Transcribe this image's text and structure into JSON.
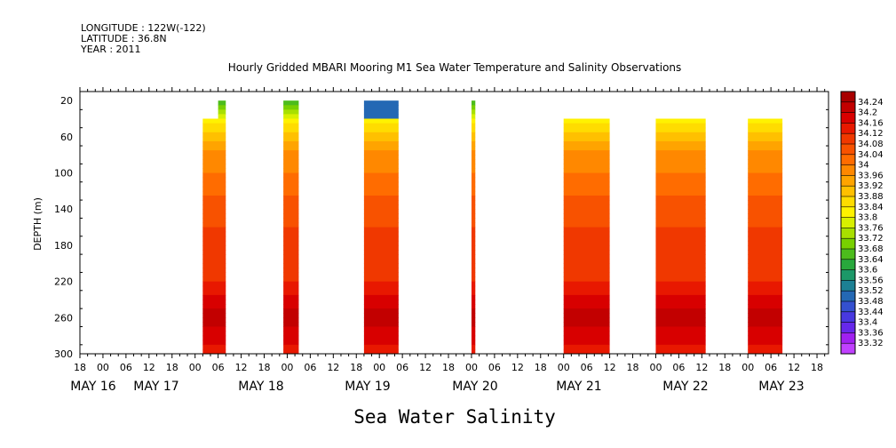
{
  "header": {
    "longitude": "LONGITUDE : 122W(-122)",
    "latitude": "LATITUDE : 36.8N",
    "year": "YEAR : 2011"
  },
  "chart_data": {
    "type": "heatmap",
    "title": "Hourly Gridded MBARI Mooring M1 Sea Water Temperature and Salinity Observations",
    "xlabel": "Sea Water Salinity",
    "ylabel": "DEPTH (m)",
    "ylim": [
      300,
      10
    ],
    "y_ticks": [
      20,
      60,
      100,
      140,
      180,
      220,
      260,
      300
    ],
    "x_hour_ticks": [
      "18",
      "00",
      "06",
      "12",
      "18",
      "00",
      "06",
      "12",
      "18",
      "00",
      "06",
      "12",
      "18",
      "00",
      "06",
      "12",
      "18",
      "00",
      "06",
      "12",
      "18",
      "00",
      "06",
      "12",
      "18",
      "00",
      "06",
      "12",
      "18",
      "00",
      "06",
      "12",
      "18"
    ],
    "x_day_labels": [
      "MAY 16",
      "MAY 17",
      "MAY 18",
      "MAY 19",
      "MAY 20",
      "MAY 21",
      "MAY 22",
      "MAY 23"
    ],
    "colorbar_levels": [
      "34.24",
      "34.2",
      "34.16",
      "34.12",
      "34.08",
      "34.04",
      "34",
      "33.96",
      "33.92",
      "33.88",
      "33.84",
      "33.8",
      "33.76",
      "33.72",
      "33.68",
      "33.64",
      "33.6",
      "33.56",
      "33.52",
      "33.48",
      "33.44",
      "33.4",
      "33.36",
      "33.32"
    ],
    "colorbar_colors": [
      "#a80000",
      "#c20000",
      "#d80000",
      "#e81800",
      "#f03800",
      "#f85200",
      "#ff6c00",
      "#ff8800",
      "#ffa400",
      "#ffc000",
      "#ffdc00",
      "#fff200",
      "#d8f000",
      "#a8e000",
      "#78d000",
      "#4cbc1c",
      "#28a83c",
      "#1c9868",
      "#1c8094",
      "#2468b4",
      "#3450d0",
      "#4838e0",
      "#6628ea",
      "#a020f0",
      "#c040ff"
    ],
    "observation_segments": [
      {
        "start": "2011-05-17 02:00",
        "end": "2011-05-17 08:00",
        "top_depth": 40,
        "top_step_depth": 20,
        "top_step_start": "2011-05-17 06:00"
      },
      {
        "start": "2011-05-17 23:00",
        "end": "2011-05-18 03:00",
        "top_depth": 20
      },
      {
        "start": "2011-05-18 20:00",
        "end": "2011-05-19 05:00",
        "top_depth": 20
      },
      {
        "start": "2011-05-20 00:00",
        "end": "2011-05-20 01:00",
        "top_depth": 20
      },
      {
        "start": "2011-05-21 00:00",
        "end": "2011-05-21 12:00",
        "top_depth": 40
      },
      {
        "start": "2011-05-22 00:00",
        "end": "2011-05-22 13:00",
        "top_depth": 40
      },
      {
        "start": "2011-05-23 00:00",
        "end": "2011-05-23 09:00",
        "top_depth": 40
      }
    ],
    "depth_profile": [
      {
        "depth": 20,
        "salinity": 33.62
      },
      {
        "depth": 40,
        "salinity": 33.82
      },
      {
        "depth": 60,
        "salinity": 33.9
      },
      {
        "depth": 80,
        "salinity": 33.98
      },
      {
        "depth": 100,
        "salinity": 34.0
      },
      {
        "depth": 140,
        "salinity": 34.06
      },
      {
        "depth": 180,
        "salinity": 34.1
      },
      {
        "depth": 220,
        "salinity": 34.12
      },
      {
        "depth": 250,
        "salinity": 34.2
      },
      {
        "depth": 270,
        "salinity": 34.2
      },
      {
        "depth": 300,
        "salinity": 34.14
      }
    ]
  }
}
